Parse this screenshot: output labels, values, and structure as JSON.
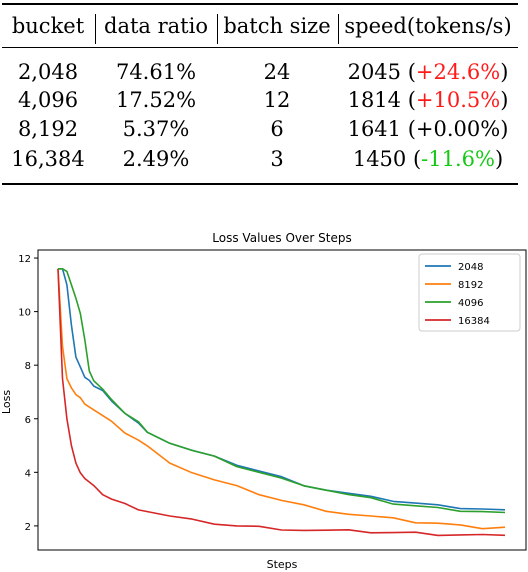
{
  "table": {
    "headers": [
      "bucket",
      "data ratio",
      "batch size",
      "speed(tokens/s)"
    ],
    "rows": [
      {
        "bucket": "2,048",
        "ratio": "74.61%",
        "batch": "24",
        "speed": "2045",
        "delta": "+24.6%",
        "tone": "red"
      },
      {
        "bucket": "4,096",
        "ratio": "17.52%",
        "batch": "12",
        "speed": "1814",
        "delta": "+10.5%",
        "tone": "red"
      },
      {
        "bucket": "8,192",
        "ratio": "5.37%",
        "batch": "6",
        "speed": "1641",
        "delta": "+0.00%",
        "tone": "black"
      },
      {
        "bucket": "16,384",
        "ratio": "2.49%",
        "batch": "3",
        "speed": "1450",
        "delta": "-11.6%",
        "tone": "green"
      }
    ],
    "colors": {
      "red": "#ff1a1a",
      "green": "#17c917",
      "black": "#000000"
    }
  },
  "chart_data": {
    "type": "line",
    "title": "Loss Values Over Steps",
    "xlabel": "Steps",
    "ylabel": "Loss",
    "x_ticks_shown": false,
    "x_range": [
      0,
      100
    ],
    "ylim": [
      1.1,
      12.3
    ],
    "yticks": [
      2,
      4,
      6,
      8,
      10,
      12
    ],
    "grid": false,
    "legend_position": "top-right",
    "series": [
      {
        "name": "2048",
        "color": "#1f77b4",
        "x": [
          0,
          1,
          2,
          3,
          4,
          5,
          6,
          7,
          8,
          10,
          12,
          15,
          18,
          20,
          25,
          30,
          35,
          40,
          45,
          50,
          55,
          60,
          65,
          70,
          75,
          80,
          85,
          90,
          95,
          100
        ],
        "y": [
          11.6,
          11.6,
          11.0,
          9.5,
          8.3,
          7.9,
          7.6,
          7.45,
          7.2,
          7.0,
          6.7,
          6.2,
          5.8,
          5.55,
          5.1,
          4.8,
          4.55,
          4.3,
          4.05,
          3.8,
          3.55,
          3.35,
          3.2,
          3.05,
          2.95,
          2.85,
          2.75,
          2.7,
          2.65,
          2.6
        ]
      },
      {
        "name": "8192",
        "color": "#ff7f0e",
        "x": [
          0,
          1,
          2,
          3,
          4,
          5,
          6,
          8,
          10,
          12,
          15,
          18,
          20,
          25,
          30,
          35,
          40,
          45,
          50,
          55,
          60,
          65,
          70,
          75,
          80,
          85,
          90,
          95,
          100
        ],
        "y": [
          11.6,
          8.7,
          7.5,
          7.15,
          6.9,
          6.75,
          6.6,
          6.35,
          6.1,
          5.85,
          5.5,
          5.2,
          4.95,
          4.4,
          4.0,
          3.7,
          3.45,
          3.2,
          2.95,
          2.75,
          2.6,
          2.45,
          2.35,
          2.25,
          2.15,
          2.1,
          2.0,
          1.95,
          1.95
        ]
      },
      {
        "name": "4096",
        "color": "#2ca02c",
        "x": [
          0,
          1,
          2,
          3,
          4,
          5,
          6,
          7,
          8,
          10,
          12,
          15,
          18,
          20,
          25,
          30,
          35,
          40,
          45,
          50,
          55,
          60,
          65,
          70,
          75,
          80,
          85,
          90,
          95,
          100
        ],
        "y": [
          11.6,
          11.6,
          11.5,
          11.0,
          10.5,
          9.9,
          9.0,
          7.8,
          7.4,
          7.05,
          6.75,
          6.2,
          5.85,
          5.55,
          5.1,
          4.8,
          4.55,
          4.25,
          4.0,
          3.75,
          3.55,
          3.35,
          3.15,
          3.0,
          2.85,
          2.75,
          2.65,
          2.6,
          2.55,
          2.5
        ]
      },
      {
        "name": "16384",
        "color": "#d62728",
        "x": [
          0,
          1,
          2,
          3,
          4,
          5,
          6,
          8,
          10,
          12,
          15,
          18,
          20,
          25,
          30,
          35,
          40,
          45,
          50,
          55,
          60,
          65,
          70,
          75,
          80,
          85,
          90,
          95,
          100
        ],
        "y": [
          11.6,
          7.5,
          6.0,
          5.0,
          4.4,
          4.0,
          3.75,
          3.45,
          3.2,
          3.0,
          2.8,
          2.65,
          2.55,
          2.35,
          2.2,
          2.1,
          2.0,
          1.95,
          1.9,
          1.85,
          1.82,
          1.8,
          1.78,
          1.75,
          1.73,
          1.7,
          1.68,
          1.66,
          1.65
        ]
      }
    ]
  }
}
